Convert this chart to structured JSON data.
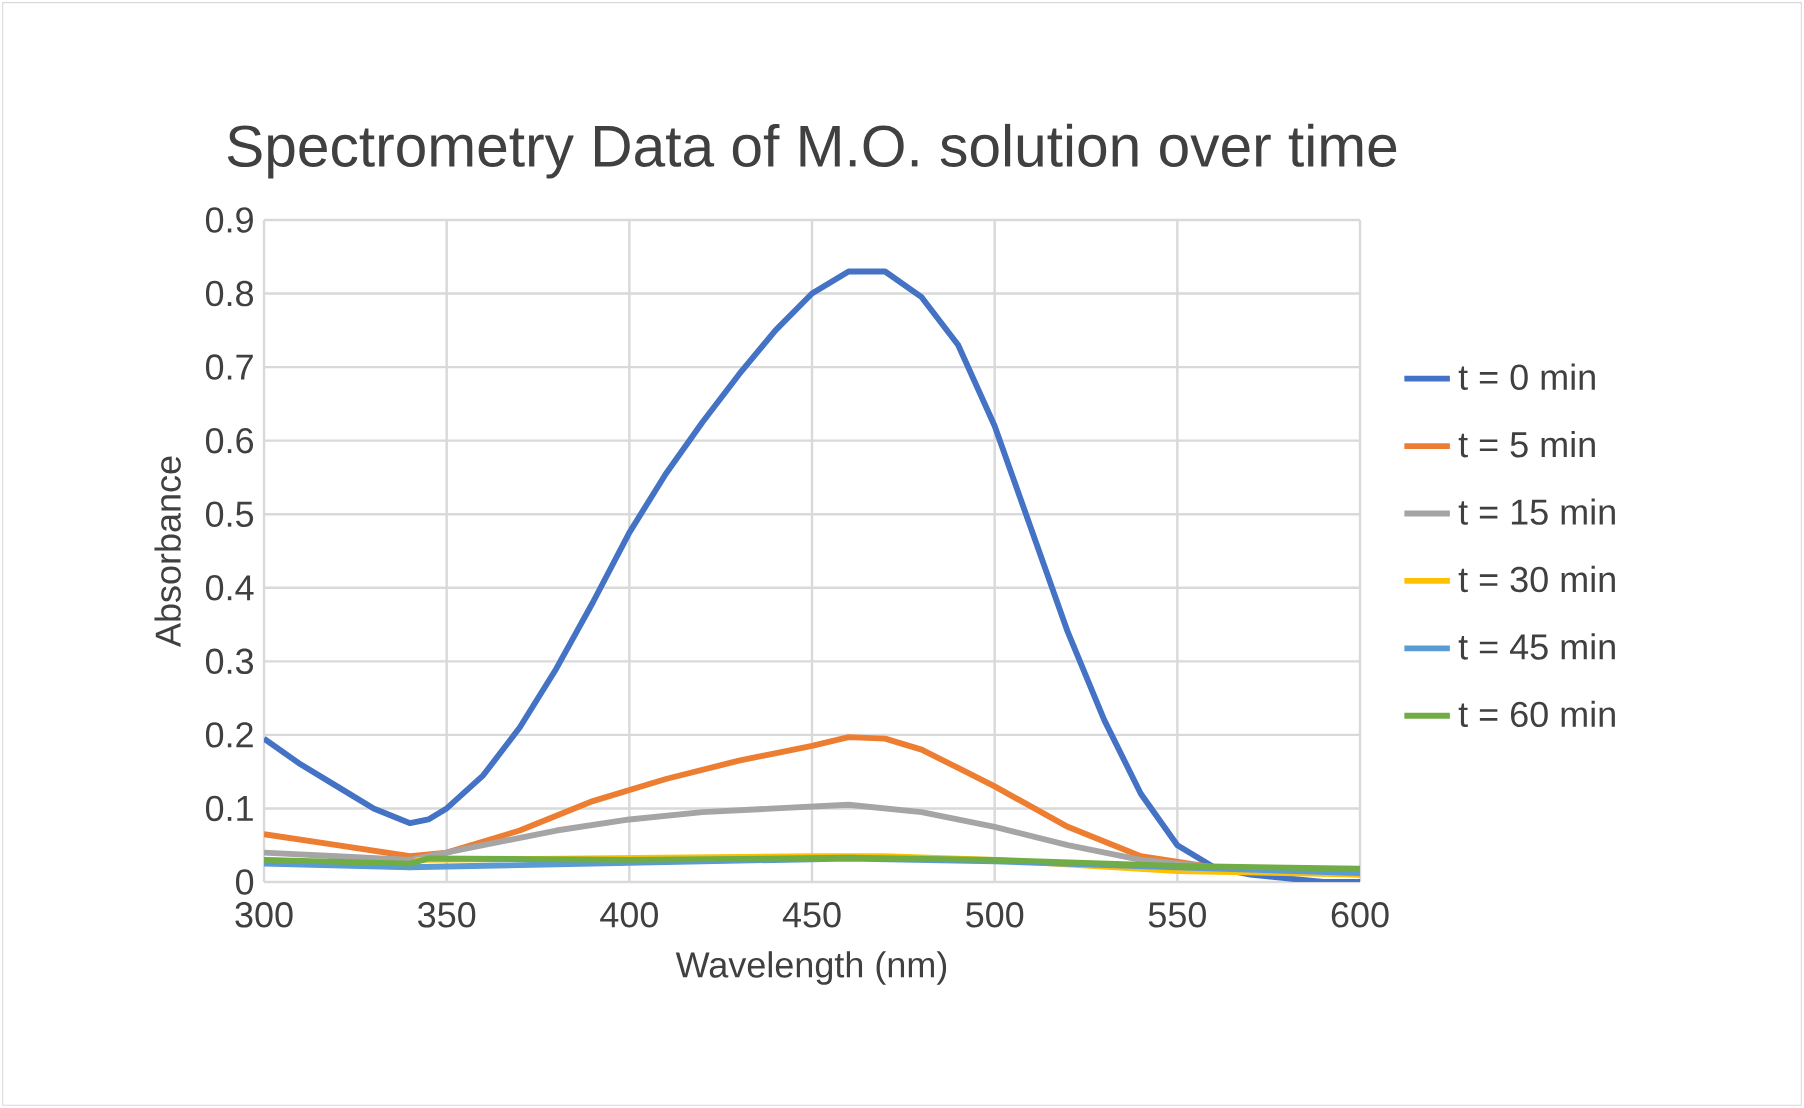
{
  "chart_data": {
    "type": "line",
    "title": "Spectrometry Data of M.O. solution over time",
    "xlabel": "Wavelength (nm)",
    "ylabel": "Absorbance",
    "xlim": [
      300,
      600
    ],
    "xticks": [
      300,
      350,
      400,
      450,
      500,
      550,
      600
    ],
    "ylim": [
      0,
      0.9
    ],
    "yticks": [
      0,
      0.1,
      0.2,
      0.3,
      0.4,
      0.5,
      0.6,
      0.7,
      0.8,
      0.9
    ],
    "grid": true,
    "legend": "right",
    "marker": "none",
    "line_style": "solid",
    "series": [
      {
        "name": "t = 0 min",
        "color": "#4472c4",
        "x": [
          300,
          310,
          320,
          330,
          340,
          345,
          350,
          360,
          370,
          380,
          390,
          400,
          410,
          420,
          430,
          440,
          450,
          455,
          460,
          470,
          480,
          490,
          500,
          510,
          520,
          530,
          540,
          550,
          560,
          570,
          580,
          590,
          600
        ],
        "values": [
          0.195,
          0.16,
          0.13,
          0.1,
          0.08,
          0.085,
          0.1,
          0.145,
          0.21,
          0.29,
          0.38,
          0.475,
          0.555,
          0.625,
          0.69,
          0.75,
          0.8,
          0.815,
          0.83,
          0.83,
          0.795,
          0.73,
          0.62,
          0.48,
          0.34,
          0.22,
          0.12,
          0.05,
          0.02,
          0.01,
          0.005,
          0.0,
          0.0
        ]
      },
      {
        "name": "t = 5 min",
        "color": "#ed7d31",
        "x": [
          300,
          320,
          340,
          350,
          370,
          390,
          410,
          430,
          450,
          460,
          470,
          480,
          490,
          500,
          520,
          540,
          560,
          580,
          600
        ],
        "values": [
          0.065,
          0.05,
          0.035,
          0.04,
          0.07,
          0.11,
          0.14,
          0.165,
          0.185,
          0.197,
          0.195,
          0.18,
          0.155,
          0.13,
          0.075,
          0.035,
          0.02,
          0.015,
          0.01
        ]
      },
      {
        "name": "t = 15 min",
        "color": "#a5a5a5",
        "x": [
          300,
          320,
          340,
          360,
          380,
          400,
          420,
          440,
          460,
          480,
          500,
          520,
          540,
          560,
          600
        ],
        "values": [
          0.04,
          0.035,
          0.03,
          0.05,
          0.07,
          0.085,
          0.095,
          0.1,
          0.105,
          0.095,
          0.075,
          0.05,
          0.03,
          0.02,
          0.015
        ]
      },
      {
        "name": "t = 30 min",
        "color": "#ffc000",
        "x": [
          300,
          340,
          342,
          400,
          450,
          470,
          500,
          550,
          600
        ],
        "values": [
          0.03,
          0.02,
          0.03,
          null,
          0.035,
          0.035,
          0.03,
          0.015,
          0.01
        ]
      },
      {
        "name": "t = 45 min",
        "color": "#5b9bd5",
        "x": [
          300,
          340,
          400,
          460,
          500,
          550,
          600
        ],
        "values": [
          0.025,
          0.02,
          null,
          0.032,
          0.028,
          0.02,
          0.012
        ]
      },
      {
        "name": "t = 60 min",
        "color": "#70ad47",
        "x": [
          300,
          340,
          345,
          400,
          460,
          500,
          550,
          600
        ],
        "values": [
          0.03,
          0.025,
          0.032,
          0.03,
          0.033,
          0.03,
          0.022,
          0.018
        ]
      }
    ]
  }
}
